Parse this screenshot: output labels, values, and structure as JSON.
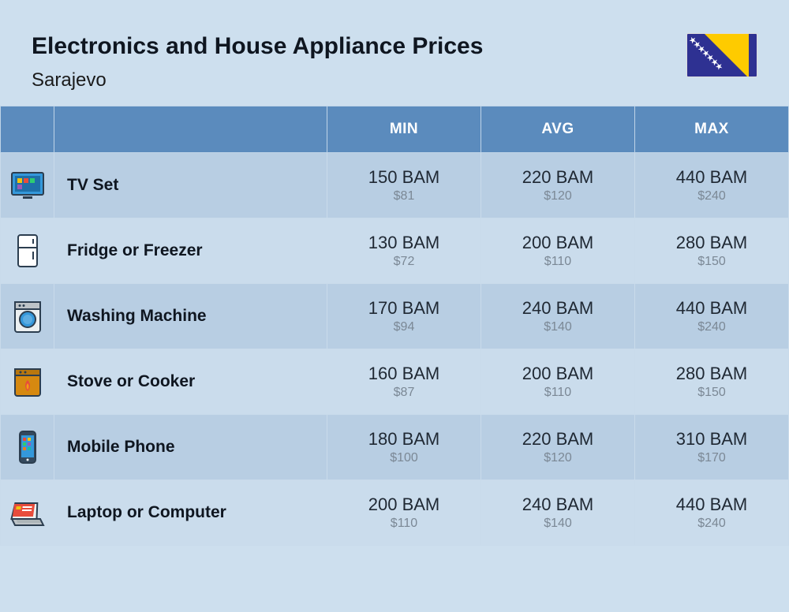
{
  "header": {
    "title": "Electronics and House Appliance Prices",
    "subtitle": "Sarajevo"
  },
  "columns": {
    "min": "MIN",
    "avg": "AVG",
    "max": "MAX"
  },
  "rows": [
    {
      "icon": "tv-icon",
      "name": "TV Set",
      "min_bam": "150 BAM",
      "min_usd": "$81",
      "avg_bam": "220 BAM",
      "avg_usd": "$120",
      "max_bam": "440 BAM",
      "max_usd": "$240"
    },
    {
      "icon": "fridge-icon",
      "name": "Fridge or Freezer",
      "min_bam": "130 BAM",
      "min_usd": "$72",
      "avg_bam": "200 BAM",
      "avg_usd": "$110",
      "max_bam": "280 BAM",
      "max_usd": "$150"
    },
    {
      "icon": "washing-icon",
      "name": "Washing Machine",
      "min_bam": "170 BAM",
      "min_usd": "$94",
      "avg_bam": "240 BAM",
      "avg_usd": "$140",
      "max_bam": "440 BAM",
      "max_usd": "$240"
    },
    {
      "icon": "stove-icon",
      "name": "Stove or Cooker",
      "min_bam": "160 BAM",
      "min_usd": "$87",
      "avg_bam": "200 BAM",
      "avg_usd": "$110",
      "max_bam": "280 BAM",
      "max_usd": "$150"
    },
    {
      "icon": "phone-icon",
      "name": "Mobile Phone",
      "min_bam": "180 BAM",
      "min_usd": "$100",
      "avg_bam": "220 BAM",
      "avg_usd": "$120",
      "max_bam": "310 BAM",
      "max_usd": "$170"
    },
    {
      "icon": "laptop-icon",
      "name": "Laptop or Computer",
      "min_bam": "200 BAM",
      "min_usd": "$110",
      "avg_bam": "240 BAM",
      "avg_usd": "$140",
      "max_bam": "440 BAM",
      "max_usd": "$240"
    }
  ],
  "colors": {
    "page_bg": "#cddfee",
    "header_bg": "#5b8bbd",
    "row_odd": "#b8cee3",
    "row_even": "#cadcec",
    "price_main": "#1f2833",
    "price_usd": "#7b8895",
    "title": "#0f1620"
  }
}
